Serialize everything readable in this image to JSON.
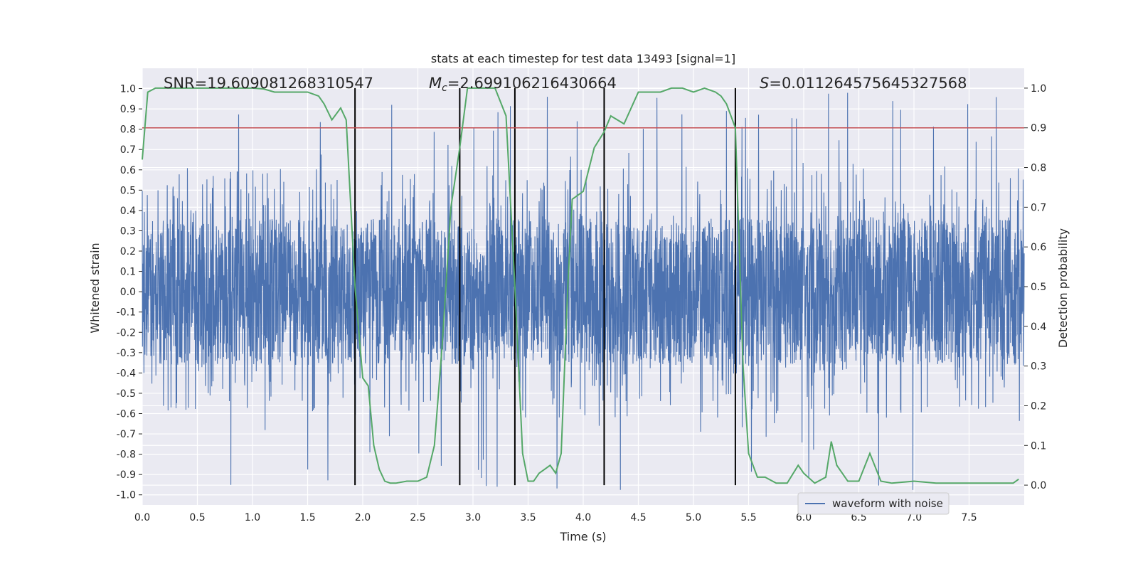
{
  "chart_data": {
    "type": "line",
    "title": "stats at each timestep for test data 13493 [signal=1]",
    "xlabel": "Time (s)",
    "ylabel": "Whitened strain",
    "y2label": "Detection probability",
    "xlim": [
      0,
      8
    ],
    "ylim": [
      -1.05,
      1.1
    ],
    "y2lim": [
      -0.05,
      1.05
    ],
    "x_ticks": [
      "0.0",
      "0.5",
      "1.0",
      "1.5",
      "2.0",
      "2.5",
      "3.0",
      "3.5",
      "4.0",
      "4.5",
      "5.0",
      "5.5",
      "6.0",
      "6.5",
      "7.0",
      "7.5"
    ],
    "y_ticks": [
      "-1.0",
      "-0.9",
      "-0.8",
      "-0.7",
      "-0.6",
      "-0.5",
      "-0.4",
      "-0.3",
      "-0.2",
      "-0.1",
      "0.0",
      "0.1",
      "0.2",
      "0.3",
      "0.4",
      "0.5",
      "0.6",
      "0.7",
      "0.8",
      "0.9",
      "1.0"
    ],
    "y2_ticks": [
      "0.0",
      "0.1",
      "0.2",
      "0.3",
      "0.4",
      "0.5",
      "0.6",
      "0.7",
      "0.8",
      "0.9",
      "1.0"
    ],
    "grid": true,
    "legend_position": "lower-right",
    "annotations": [
      {
        "id": "snr",
        "text": "SNR=19.609081268310547"
      },
      {
        "id": "mc",
        "text_prefix": "M",
        "text_sub": "c",
        "text_rest": "=2.699106216430664"
      },
      {
        "id": "s",
        "text_prefix": "S",
        "text_rest": "=0.011264575645327568"
      }
    ],
    "threshold": {
      "value": 0.9,
      "axis": "y2",
      "color": "#c44e52"
    },
    "vertical_markers_x": [
      1.93,
      2.88,
      3.38,
      4.19,
      5.38
    ],
    "series": [
      {
        "name": "waveform with noise",
        "axis": "y",
        "color": "#4c72b0",
        "style": "noise-waveform",
        "envelope": {
          "core_abs": 0.36,
          "typical_peak": 0.62,
          "max_abs": 0.99
        }
      },
      {
        "axis": "y2",
        "color": "#55a868",
        "x": [
          0.0,
          0.05,
          0.12,
          0.3,
          0.5,
          0.7,
          0.9,
          1.0,
          1.1,
          1.2,
          1.3,
          1.4,
          1.5,
          1.6,
          1.65,
          1.72,
          1.8,
          1.85,
          1.93,
          2.0,
          2.05,
          2.1,
          2.15,
          2.2,
          2.25,
          2.3,
          2.4,
          2.5,
          2.58,
          2.65,
          2.72,
          2.8,
          2.88,
          2.95,
          3.0,
          3.1,
          3.2,
          3.3,
          3.38,
          3.45,
          3.5,
          3.55,
          3.6,
          3.7,
          3.75,
          3.8,
          3.86,
          3.9,
          4.0,
          4.1,
          4.19,
          4.25,
          4.37,
          4.5,
          4.6,
          4.7,
          4.8,
          4.9,
          5.0,
          5.1,
          5.2,
          5.25,
          5.3,
          5.38,
          5.45,
          5.5,
          5.58,
          5.65,
          5.75,
          5.85,
          5.95,
          6.0,
          6.1,
          6.2,
          6.25,
          6.3,
          6.4,
          6.5,
          6.6,
          6.7,
          6.8,
          7.0,
          7.2,
          7.5,
          7.9,
          7.95
        ],
        "values": [
          0.82,
          0.99,
          1.0,
          1.0,
          1.0,
          1.0,
          1.0,
          1.0,
          0.998,
          0.99,
          0.99,
          0.99,
          0.99,
          0.98,
          0.96,
          0.92,
          0.95,
          0.92,
          0.5,
          0.27,
          0.25,
          0.1,
          0.04,
          0.01,
          0.005,
          0.005,
          0.01,
          0.01,
          0.02,
          0.1,
          0.35,
          0.7,
          0.85,
          1.0,
          1.0,
          1.0,
          1.0,
          0.93,
          0.5,
          0.08,
          0.01,
          0.01,
          0.03,
          0.05,
          0.03,
          0.08,
          0.5,
          0.72,
          0.74,
          0.85,
          0.89,
          0.93,
          0.91,
          0.99,
          0.99,
          0.99,
          1.0,
          1.0,
          0.99,
          1.0,
          0.99,
          0.98,
          0.96,
          0.9,
          0.3,
          0.08,
          0.02,
          0.02,
          0.005,
          0.005,
          0.05,
          0.03,
          0.005,
          0.02,
          0.11,
          0.05,
          0.01,
          0.01,
          0.08,
          0.01,
          0.005,
          0.01,
          0.005,
          0.005,
          0.005,
          0.015
        ]
      }
    ]
  }
}
